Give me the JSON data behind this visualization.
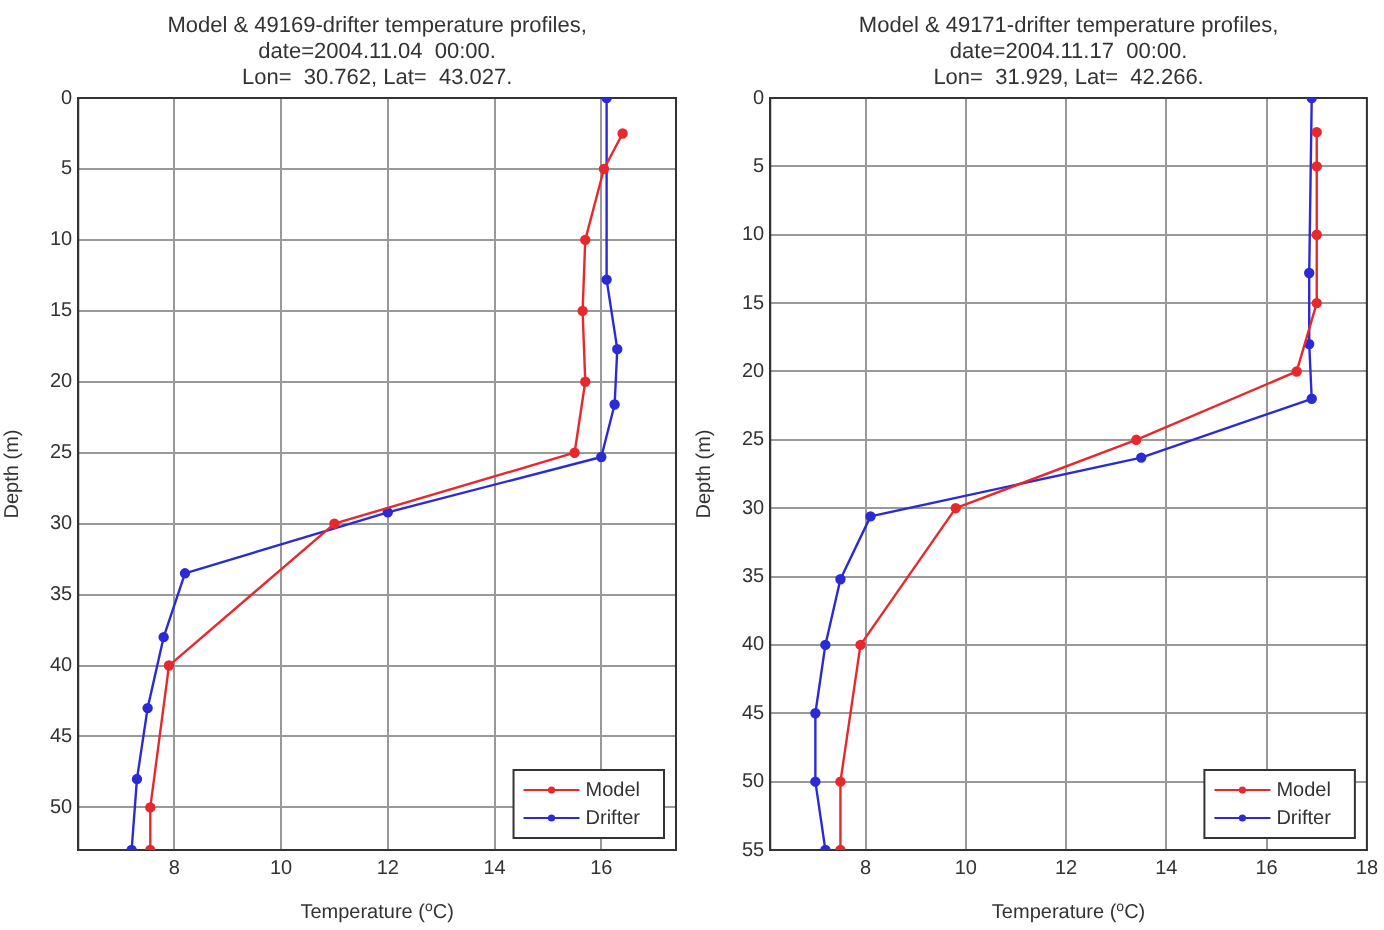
{
  "chart_data": [
    {
      "type": "line",
      "title": [
        "Model & 49169-drifter temperature profiles,",
        "date=2004.11.04  00:00.",
        "Lon=  30.762, Lat=  43.027."
      ],
      "xlabel": "Temperature ($^{o}$C)",
      "ylabel": "Depth (m)",
      "xlim": [
        6.2,
        17.4
      ],
      "xticks": [
        8,
        10,
        12,
        14,
        16
      ],
      "ylim": [
        53,
        0
      ],
      "yticks": [
        0,
        5,
        10,
        15,
        20,
        25,
        30,
        35,
        40,
        45,
        50
      ],
      "grid": true,
      "legend": "bottom right",
      "marker": "circle",
      "line_style": "solid",
      "series": [
        {
          "name": "Model",
          "color": "#e8282d",
          "x": [
            16.4,
            16.05,
            15.7,
            15.65,
            15.7,
            15.5,
            11.0,
            7.9,
            7.55,
            7.55
          ],
          "values": [
            2.5,
            5,
            10,
            15,
            20,
            25,
            30,
            40,
            50,
            53
          ]
        },
        {
          "name": "Drifter",
          "color": "#2b2bd6",
          "x": [
            16.1,
            16.1,
            16.3,
            16.25,
            16.0,
            12.0,
            8.2,
            7.8,
            7.5,
            7.3,
            7.2
          ],
          "values": [
            0,
            12.8,
            17.7,
            21.6,
            25.3,
            29.2,
            33.5,
            38,
            43,
            48,
            53
          ]
        }
      ]
    },
    {
      "type": "line",
      "title": [
        "Model & 49171-drifter temperature profiles,",
        "date=2004.11.17  00:00.",
        "Lon=  31.929, Lat=  42.266."
      ],
      "xlabel": "Temperature ($^{o}$C)",
      "ylabel": "Depth (m)",
      "xlim": [
        6.1,
        18
      ],
      "xticks": [
        8,
        10,
        12,
        14,
        16,
        18
      ],
      "ylim": [
        55,
        0
      ],
      "yticks": [
        0,
        5,
        10,
        15,
        20,
        25,
        30,
        35,
        40,
        45,
        50,
        55
      ],
      "grid": true,
      "legend": "bottom right",
      "marker": "circle",
      "line_style": "solid",
      "series": [
        {
          "name": "Model",
          "color": "#e8282d",
          "x": [
            17.0,
            17.0,
            17.0,
            17.0,
            16.6,
            13.4,
            9.8,
            7.9,
            7.5,
            7.5
          ],
          "values": [
            2.5,
            5,
            10,
            15,
            20,
            25,
            30,
            40,
            50,
            55
          ]
        },
        {
          "name": "Drifter",
          "color": "#2b2bd6",
          "x": [
            16.9,
            16.85,
            16.85,
            16.9,
            13.5,
            8.1,
            7.5,
            7.2,
            7.0,
            7.0,
            7.2
          ],
          "values": [
            0,
            12.8,
            18,
            22,
            26.3,
            30.6,
            35.2,
            40,
            45,
            50,
            55
          ]
        }
      ]
    }
  ]
}
